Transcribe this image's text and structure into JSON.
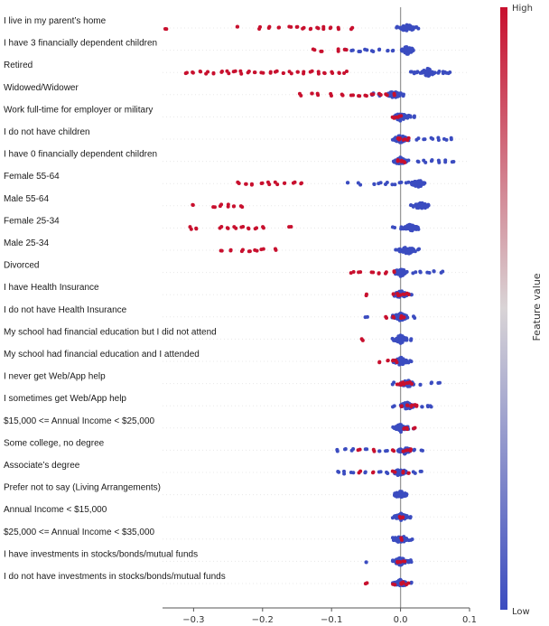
{
  "chart_data": {
    "type": "scatter",
    "xlabel": "",
    "ylabel": "",
    "xlim": [
      -0.345,
      0.1
    ],
    "x_ticks": [
      "−0.3",
      "−0.2",
      "−0.1",
      "0.0",
      "0.1"
    ],
    "x_tick_values": [
      -0.3,
      -0.2,
      -0.1,
      0.0,
      0.1
    ],
    "colorbar": {
      "title": "Feature value",
      "high_label": "High",
      "low_label": "Low",
      "high_color": "#c8102e",
      "mid_color": "#d9d4d6",
      "low_color": "#3b4cc0"
    },
    "features": [
      {
        "name": "I live in my parent’s home",
        "high_values": [
          -0.34,
          -0.235,
          -0.205,
          -0.19,
          -0.175,
          -0.16,
          -0.15,
          -0.14,
          -0.13,
          -0.12,
          -0.11,
          -0.1,
          -0.09,
          -0.07
        ],
        "low_values": [
          -0.005,
          0.0,
          0.005,
          0.01,
          0.015,
          0.02,
          0.025
        ],
        "center": 0.01
      },
      {
        "name": "I have 3 financially dependent children",
        "high_values": [
          -0.125,
          -0.115,
          -0.09,
          -0.08
        ],
        "low_values": [
          -0.08,
          -0.07,
          -0.06,
          -0.05,
          -0.04,
          -0.03,
          -0.02,
          -0.01,
          0.005,
          0.01,
          0.015
        ],
        "center": 0.01
      },
      {
        "name": "Retired",
        "high_values": [
          -0.31,
          -0.3,
          -0.29,
          -0.28,
          -0.27,
          -0.26,
          -0.25,
          -0.24,
          -0.23,
          -0.22,
          -0.21,
          -0.2,
          -0.19,
          -0.18,
          -0.17,
          -0.16,
          -0.15,
          -0.14,
          -0.13,
          -0.12,
          -0.11,
          -0.1,
          -0.09,
          -0.08
        ],
        "low_values": [
          0.015,
          0.02,
          0.025,
          0.03,
          0.035,
          0.04,
          0.045,
          0.05,
          0.055,
          0.06,
          0.065,
          0.07
        ],
        "center": 0.04
      },
      {
        "name": "Widowed/Widower",
        "high_values": [
          -0.145,
          -0.13,
          -0.12,
          -0.1,
          -0.085,
          -0.07,
          -0.06,
          -0.05,
          -0.04,
          -0.03,
          -0.02,
          -0.01
        ],
        "low_values": [
          -0.04,
          -0.03,
          -0.02,
          -0.01,
          0.0,
          0.005
        ],
        "center": -0.01
      },
      {
        "name": "Work full-time for employer or military",
        "high_values": [
          -0.01,
          -0.005,
          0.0
        ],
        "low_values": [
          0.0,
          0.005,
          0.01,
          0.015,
          0.02
        ],
        "center": 0.0
      },
      {
        "name": "I do not have children",
        "high_values": [
          -0.005,
          0.0,
          0.005,
          0.01
        ],
        "low_values": [
          -0.01,
          0.0,
          0.01,
          0.025,
          0.035,
          0.045,
          0.055,
          0.065,
          0.075
        ],
        "center": 0.0
      },
      {
        "name": "I have 0 financially dependent children",
        "high_values": [
          -0.005,
          0.0,
          0.005
        ],
        "low_values": [
          -0.01,
          0.0,
          0.01,
          0.025,
          0.035,
          0.045,
          0.055,
          0.065,
          0.075
        ],
        "center": 0.0
      },
      {
        "name": "Female 55-64",
        "high_values": [
          -0.235,
          -0.225,
          -0.215,
          -0.2,
          -0.19,
          -0.18,
          -0.17,
          -0.155,
          -0.145
        ],
        "low_values": [
          -0.075,
          -0.06,
          -0.04,
          -0.03,
          -0.02,
          -0.01,
          0.0,
          0.01,
          0.02,
          0.025,
          0.03,
          0.035
        ],
        "center": 0.025
      },
      {
        "name": "Male 55-64",
        "high_values": [
          -0.3,
          -0.27,
          -0.26,
          -0.25,
          -0.24,
          -0.23
        ],
        "low_values": [
          0.015,
          0.02,
          0.025,
          0.03,
          0.035,
          0.04
        ],
        "center": 0.03
      },
      {
        "name": "Female 25-34",
        "high_values": [
          -0.305,
          -0.295,
          -0.26,
          -0.25,
          -0.24,
          -0.23,
          -0.22,
          -0.21,
          -0.2,
          -0.16
        ],
        "low_values": [
          -0.01,
          0.0,
          0.005,
          0.01,
          0.015,
          0.02,
          0.025
        ],
        "center": 0.015
      },
      {
        "name": "Male 25-34",
        "high_values": [
          -0.26,
          -0.245,
          -0.23,
          -0.22,
          -0.21,
          -0.2,
          -0.18
        ],
        "low_values": [
          -0.005,
          0.0,
          0.005,
          0.01,
          0.015,
          0.02,
          0.025
        ],
        "center": 0.01
      },
      {
        "name": "Divorced",
        "high_values": [
          -0.07,
          -0.06,
          -0.04,
          -0.03,
          -0.02,
          -0.01
        ],
        "low_values": [
          -0.005,
          0.0,
          0.01,
          0.02,
          0.03,
          0.04,
          0.05,
          0.06
        ],
        "center": 0.0
      },
      {
        "name": "I have Health Insurance",
        "high_values": [
          -0.05,
          -0.01,
          -0.005,
          0.0,
          0.005,
          0.01
        ],
        "low_values": [
          -0.01,
          0.0,
          0.01,
          0.015
        ],
        "center": 0.0
      },
      {
        "name": "I do not have Health Insurance",
        "high_values": [
          -0.02,
          -0.01,
          0.0,
          0.005
        ],
        "low_values": [
          -0.05,
          -0.01,
          0.0,
          0.01,
          0.02
        ],
        "center": 0.0
      },
      {
        "name": "My school had financial education but I did not attend",
        "high_values": [
          -0.055
        ],
        "low_values": [
          -0.01,
          -0.005,
          0.0,
          0.005,
          0.01,
          0.015
        ],
        "center": 0.0
      },
      {
        "name": "My school had financial education and I attended",
        "high_values": [
          -0.03,
          -0.02,
          -0.01,
          -0.005
        ],
        "low_values": [
          -0.01,
          0.0,
          0.005,
          0.01,
          0.015
        ],
        "center": 0.0
      },
      {
        "name": "I never get Web/App help",
        "high_values": [
          -0.005,
          0.0,
          0.005,
          0.01,
          0.015
        ],
        "low_values": [
          -0.01,
          0.0,
          0.02,
          0.03,
          0.045,
          0.055
        ],
        "center": 0.01
      },
      {
        "name": "I sometimes get Web/App help",
        "high_values": [
          0.0,
          0.01,
          0.015,
          0.02,
          0.025
        ],
        "low_values": [
          -0.01,
          0.0,
          0.02,
          0.03,
          0.04,
          0.045
        ],
        "center": 0.01
      },
      {
        "name": "$15,000 <= Annual Income < $25,000",
        "high_values": [
          0.005,
          0.01,
          0.02
        ],
        "low_values": [
          -0.01,
          0.0,
          0.01,
          0.02
        ],
        "center": 0.0
      },
      {
        "name": "Some college, no degree",
        "high_values": [
          -0.06,
          -0.04,
          -0.01,
          0.005,
          0.01,
          0.015
        ],
        "low_values": [
          -0.09,
          -0.08,
          -0.07,
          -0.05,
          -0.03,
          -0.02,
          0.0,
          0.02,
          0.03
        ],
        "center": 0.005
      },
      {
        "name": "Associate’s degree",
        "high_values": [
          -0.06,
          -0.04,
          -0.01,
          0.005,
          0.01
        ],
        "low_values": [
          -0.09,
          -0.08,
          -0.07,
          -0.05,
          -0.03,
          -0.02,
          0.0,
          0.02,
          0.03
        ],
        "center": 0.0
      },
      {
        "name": "Prefer not to say (Living Arrangements)",
        "high_values": [],
        "low_values": [
          -0.002,
          0.0,
          0.002
        ],
        "center": 0.0
      },
      {
        "name": "Annual Income < $15,000",
        "high_values": [
          0.0,
          0.005
        ],
        "low_values": [
          -0.01,
          -0.005,
          0.0,
          0.01,
          0.015
        ],
        "center": 0.0
      },
      {
        "name": "$25,000 <= Annual Income < $35,000",
        "high_values": [
          0.0
        ],
        "low_values": [
          -0.01,
          -0.005,
          0.0,
          0.01,
          0.015
        ],
        "center": 0.0
      },
      {
        "name": "I have investments in stocks/bonds/mutual funds",
        "high_values": [
          -0.005,
          0.0,
          0.005
        ],
        "low_values": [
          -0.05,
          -0.01,
          0.0,
          0.01,
          0.015
        ],
        "center": 0.0
      },
      {
        "name": "I do not have investments in stocks/bonds/mutual funds",
        "high_values": [
          -0.05,
          -0.01,
          0.0,
          0.005,
          0.01
        ],
        "low_values": [
          -0.01,
          0.005,
          0.015
        ],
        "center": 0.0
      }
    ]
  }
}
